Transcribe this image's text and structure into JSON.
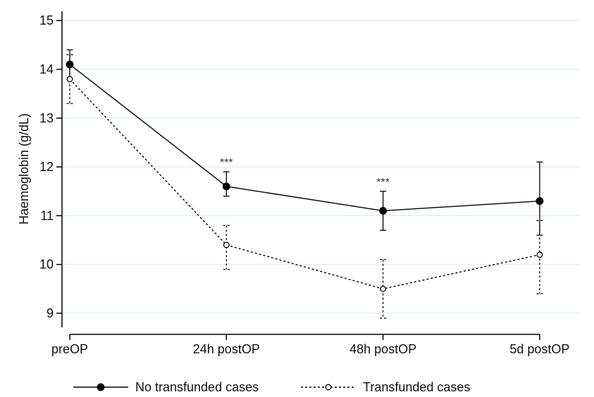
{
  "chart_data": {
    "type": "line",
    "categories": [
      "preOP",
      "24h postOP",
      "48h postOP",
      "5d postOP"
    ],
    "ylabel": "Haemoglobin (g/dL)",
    "ylim": [
      8.6,
      15.2
    ],
    "yticks": [
      9,
      10,
      11,
      12,
      13,
      14,
      15
    ],
    "grid": true,
    "legend_position": "bottom",
    "series": [
      {
        "name": "No transfunded cases",
        "marker": "filled-circle",
        "line_style": "solid",
        "color": "#000000",
        "values": [
          14.1,
          11.6,
          11.1,
          11.3
        ],
        "error_low": [
          13.8,
          11.4,
          10.7,
          10.6
        ],
        "error_high": [
          14.4,
          11.9,
          11.5,
          12.1
        ]
      },
      {
        "name": "Transfunded cases",
        "marker": "open-circle",
        "line_style": "dashed",
        "color": "#000000",
        "values": [
          13.8,
          10.4,
          9.5,
          10.2
        ],
        "error_low": [
          13.3,
          9.9,
          8.9,
          9.4
        ],
        "error_high": [
          14.3,
          10.8,
          10.1,
          10.9
        ]
      }
    ],
    "annotations": [
      {
        "category_index": 1,
        "text": "***"
      },
      {
        "category_index": 2,
        "text": "***"
      }
    ]
  }
}
